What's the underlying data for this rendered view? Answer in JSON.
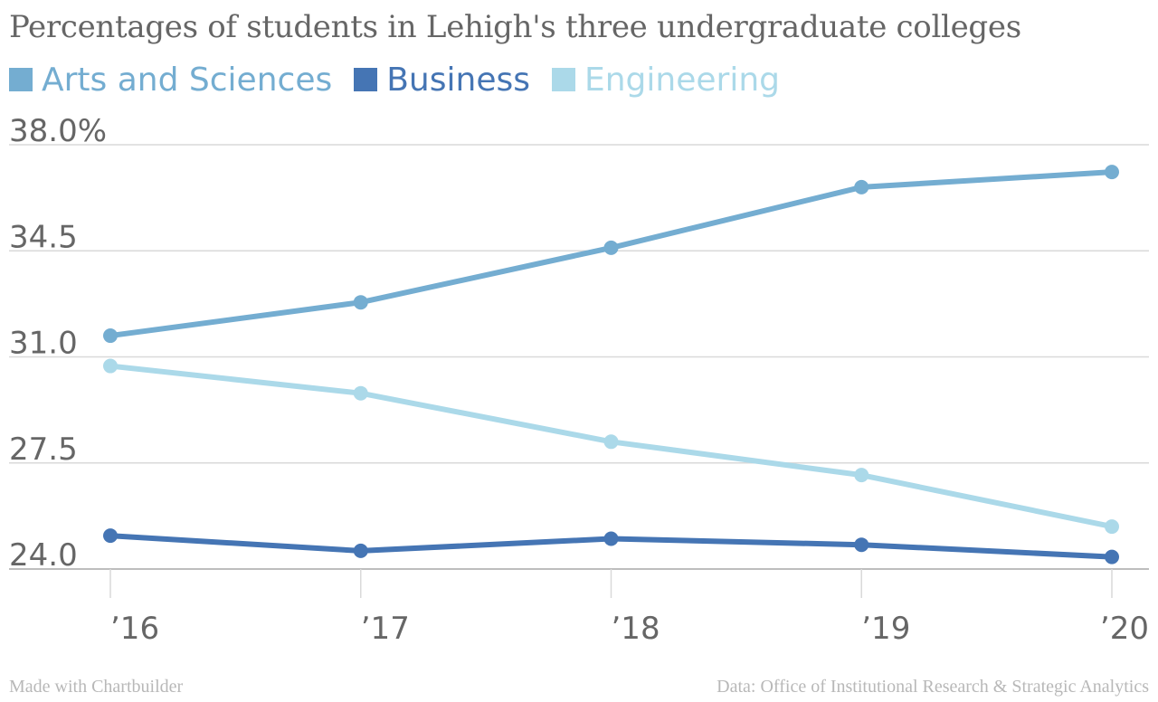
{
  "chart_data": {
    "type": "line",
    "title": "Percentages of students in Lehigh's three undergraduate colleges",
    "categories": [
      "’16",
      "’17",
      "’18",
      "’19",
      "’20"
    ],
    "y_tick_labels": [
      "38.0%",
      "34.5",
      "31.0",
      "27.5",
      "24.0"
    ],
    "y_ticks": [
      38.0,
      34.5,
      31.0,
      27.5,
      24.0
    ],
    "ylim": [
      24.0,
      38.0
    ],
    "grid": true,
    "legend_position": "top-left",
    "series": [
      {
        "name": "Arts and Sciences",
        "color": "#74add1",
        "values": [
          31.7,
          32.8,
          34.6,
          36.6,
          37.1
        ]
      },
      {
        "name": "Business",
        "color": "#4575b4",
        "values": [
          25.1,
          24.6,
          25.0,
          24.8,
          24.4
        ]
      },
      {
        "name": "Engineering",
        "color": "#abd9e9",
        "values": [
          30.7,
          29.8,
          28.2,
          27.1,
          25.4
        ]
      }
    ],
    "footer_left": "Made with Chartbuilder",
    "footer_right": "Data: Office of Institutional Research & Strategic Analytics"
  }
}
